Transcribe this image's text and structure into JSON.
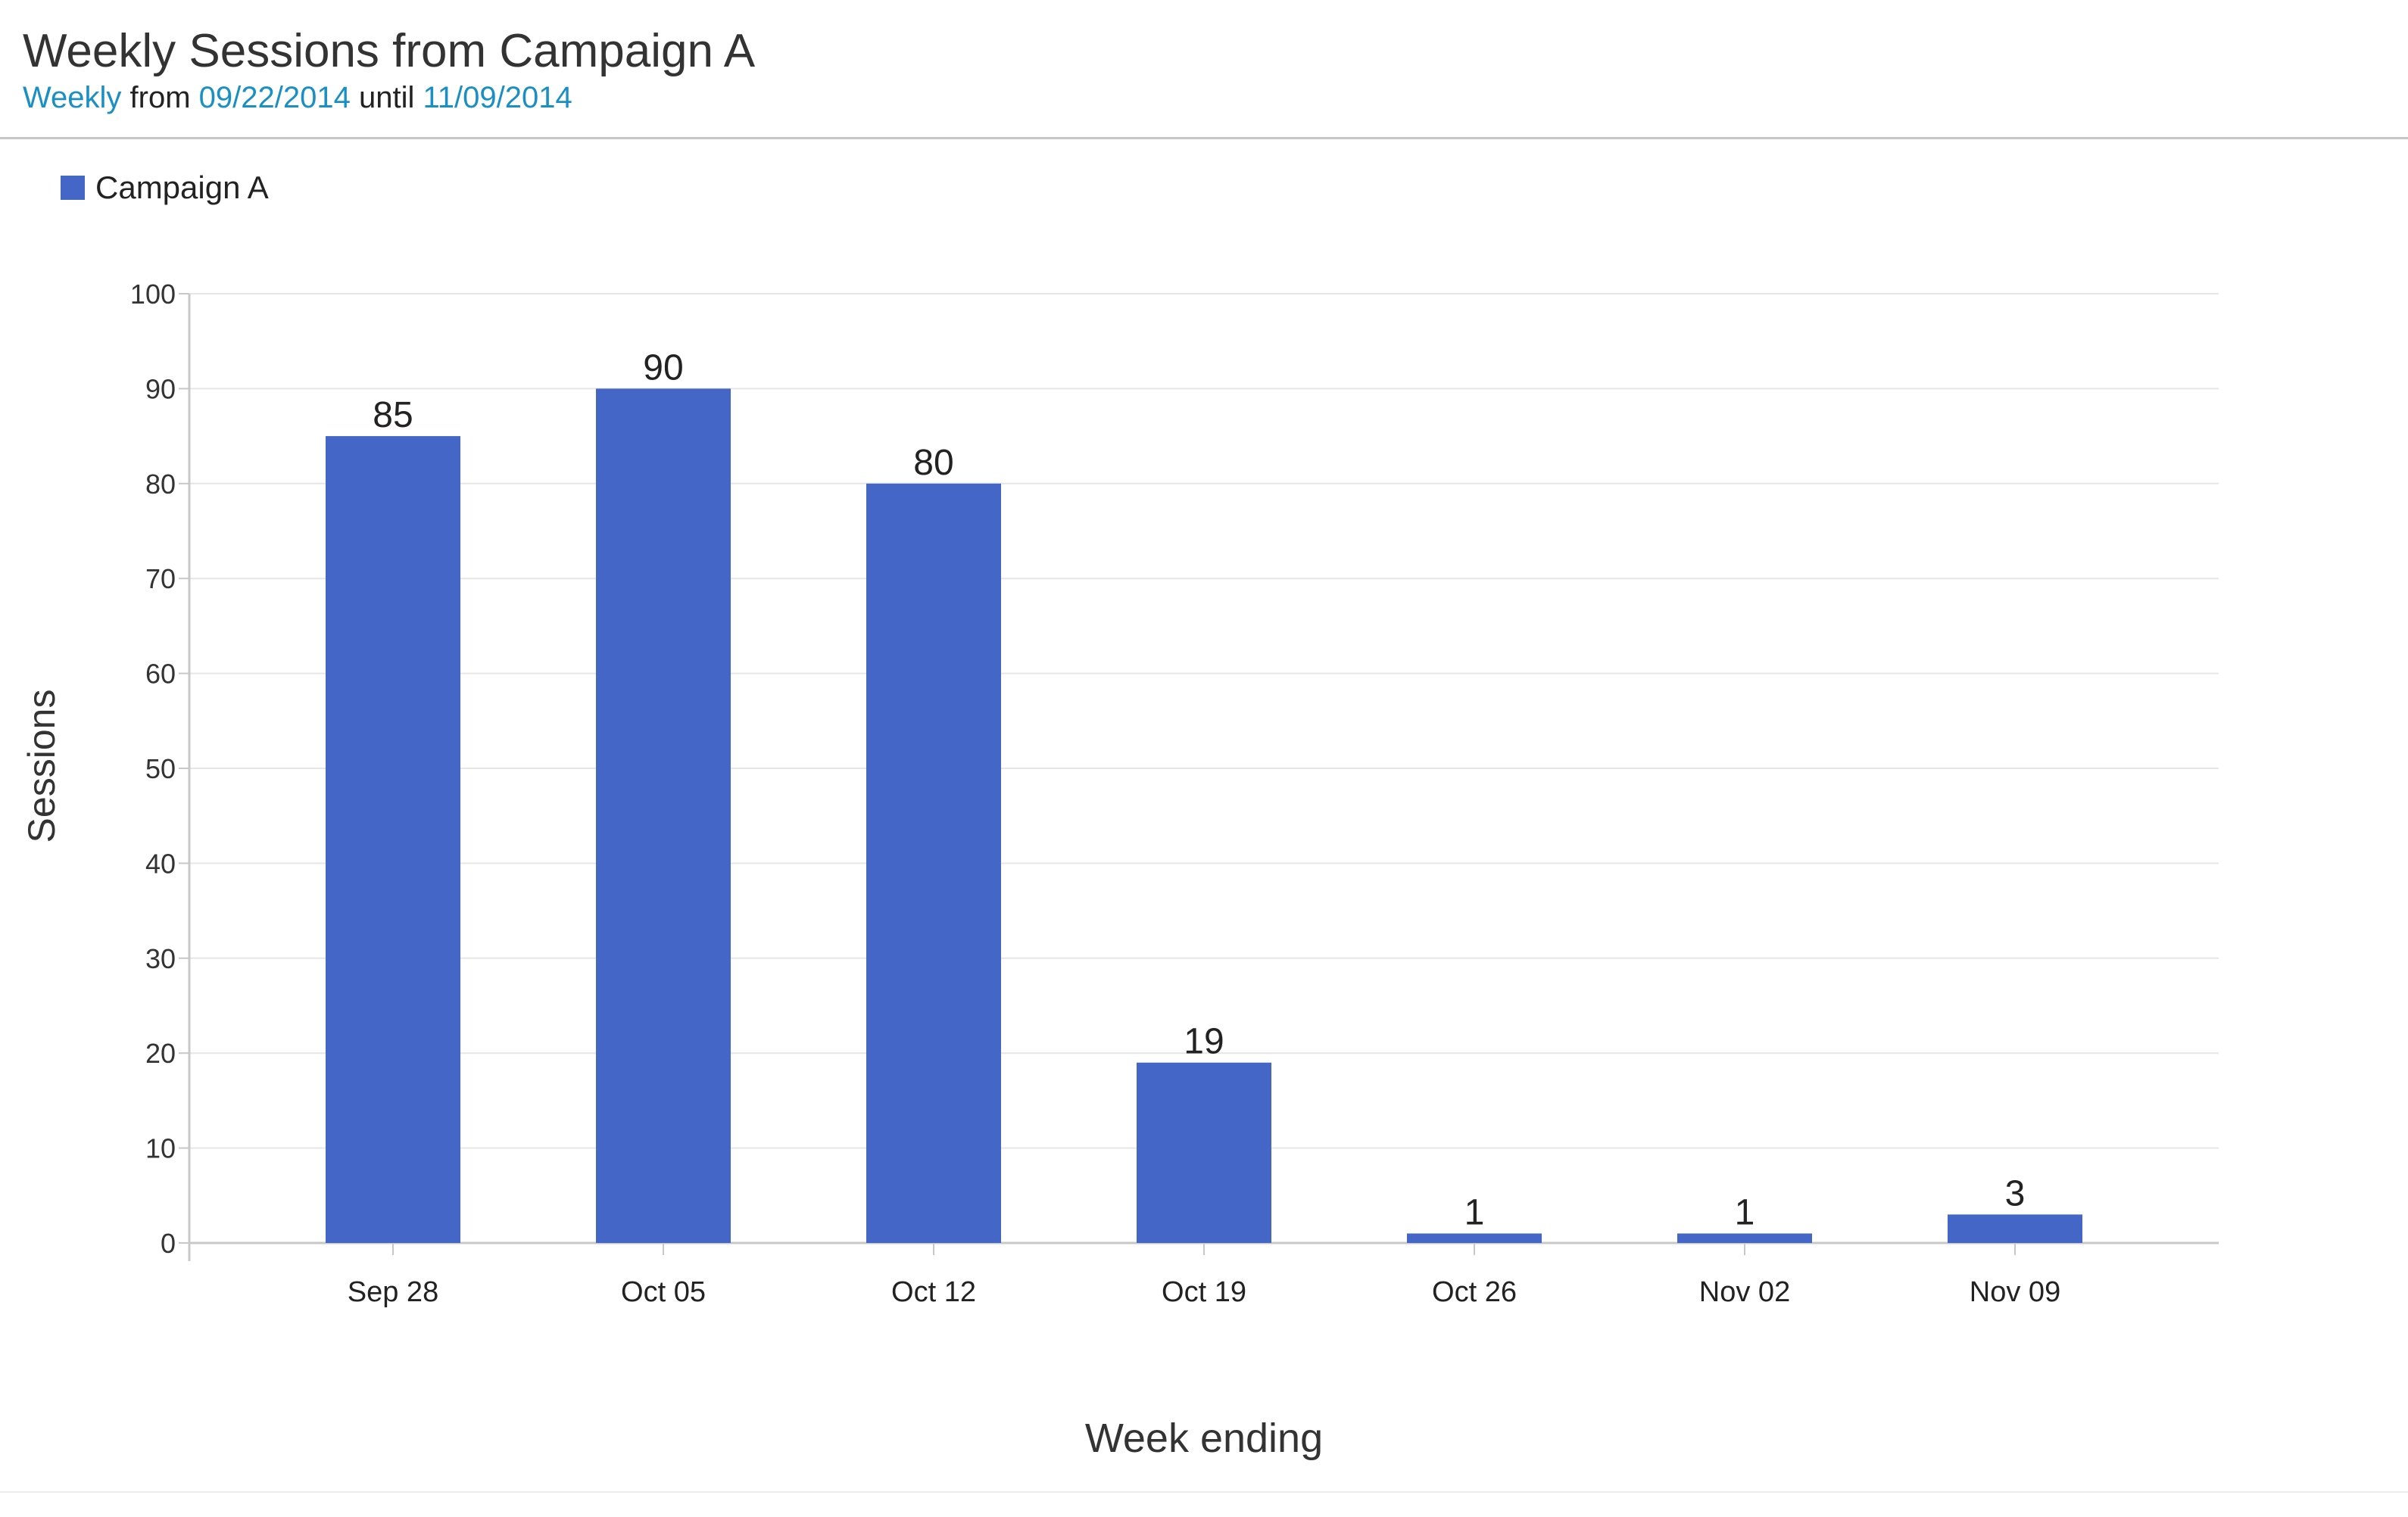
{
  "header": {
    "title": "Weekly Sessions from Campaign A",
    "subtitle": {
      "interval": "Weekly",
      "from_word": "from",
      "start_date": "09/22/2014",
      "until_word": "until",
      "end_date": "11/09/2014"
    }
  },
  "colors": {
    "bar": "#4466c6",
    "link": "#1a8fc4",
    "grid": "#e6e6e6",
    "axis": "#c8c8c8"
  },
  "chart_data": {
    "type": "bar",
    "title": "Weekly Sessions from Campaign A",
    "xlabel": "Week ending",
    "ylabel": "Sessions",
    "categories": [
      "Sep 28",
      "Oct 05",
      "Oct 12",
      "Oct 19",
      "Oct 26",
      "Nov 02",
      "Nov 09"
    ],
    "series": [
      {
        "name": "Campaign A",
        "values": [
          85,
          90,
          80,
          19,
          1,
          1,
          3
        ]
      }
    ],
    "ylim": [
      0,
      100
    ],
    "yticks": [
      0,
      10,
      20,
      30,
      40,
      50,
      60,
      70,
      80,
      90,
      100
    ],
    "grid": true,
    "legend": "top-left",
    "data_labels": true
  }
}
